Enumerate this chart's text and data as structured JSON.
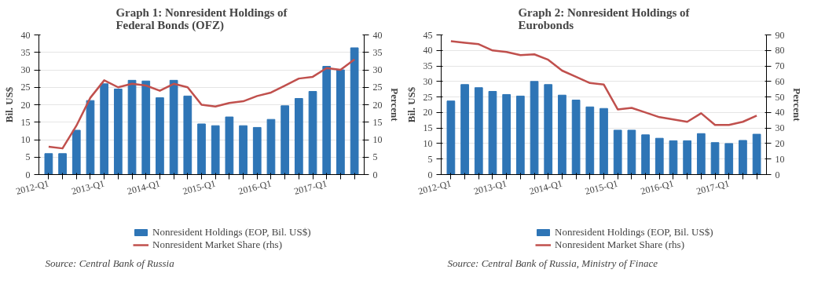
{
  "chart_data": [
    {
      "type": "bar",
      "title": "Graph 1: Nonresident Holdings of Federal Bonds (OFZ)",
      "ylabel": "Bil. US$",
      "y2label": "Percent",
      "categories": [
        "2012-Q1",
        null,
        null,
        null,
        "2013-Q1",
        null,
        null,
        null,
        "2014-Q1",
        null,
        null,
        null,
        "2015-Q1",
        null,
        null,
        null,
        "2016-Q1",
        null,
        null,
        null,
        "2017-Q1",
        null,
        null
      ],
      "series": [
        {
          "name": "Nonresident Holdings (EOP, Bil. US$)",
          "color": "#2e75b6",
          "values": [
            6,
            6,
            12.7,
            21.2,
            26,
            24.5,
            27,
            26.8,
            22,
            27,
            22.5,
            14.5,
            14,
            16.5,
            14,
            13.5,
            15.8,
            19.7,
            21.8,
            23.8,
            31,
            30,
            36.3
          ]
        },
        {
          "name": "Nonresident Market Share (rhs)",
          "type": "line",
          "axis": "y2",
          "color": "#c0504d",
          "values": [
            8,
            7.5,
            14,
            22,
            27,
            25,
            26,
            25.5,
            24,
            26,
            25,
            20,
            19.5,
            20.5,
            21,
            22.5,
            23.5,
            25.5,
            27.5,
            28,
            30.5,
            30,
            33
          ]
        }
      ],
      "ylim": [
        0,
        40
      ],
      "yticks": [
        0,
        5,
        10,
        15,
        20,
        25,
        30,
        35,
        40
      ],
      "y2lim": [
        0,
        40
      ],
      "y2ticks": [
        0,
        5,
        10,
        15,
        20,
        25,
        30,
        35,
        40
      ],
      "grid": "y",
      "legend": "bottom",
      "annotations": [
        "Source: Central Bank of Russia"
      ]
    },
    {
      "type": "bar",
      "title": "Graph 2: Nonresident Holdings of Eurobonds",
      "ylabel": "Bil. US$",
      "y2label": "Percent",
      "categories": [
        "2012-Q1",
        null,
        null,
        null,
        "2013-Q1",
        null,
        null,
        null,
        "2014-Q1",
        null,
        null,
        null,
        "2015-Q1",
        null,
        null,
        null,
        "2016-Q1",
        null,
        null,
        null,
        "2017-Q1",
        null,
        null
      ],
      "series": [
        {
          "name": "Nonresident Holdings (EOP, Bil. US$)",
          "color": "#2e75b6",
          "values": [
            23.7,
            29,
            28,
            26.8,
            25.8,
            25.3,
            30,
            29,
            25.6,
            24,
            21.8,
            21.3,
            14.3,
            14.3,
            12.8,
            11.7,
            10.9,
            10.9,
            13.2,
            10.3,
            10,
            11,
            13
          ]
        },
        {
          "name": "Nonresident Market Share (rhs)",
          "type": "line",
          "axis": "y2",
          "color": "#c0504d",
          "values": [
            86,
            85,
            84,
            80,
            79,
            77,
            77.5,
            74,
            67,
            63,
            59,
            58,
            42,
            43,
            40,
            37,
            35.5,
            34,
            39.5,
            32,
            32,
            34,
            38
          ]
        }
      ],
      "ylim": [
        0,
        45
      ],
      "yticks": [
        0,
        5,
        10,
        15,
        20,
        25,
        30,
        35,
        40,
        45
      ],
      "y2lim": [
        0,
        90
      ],
      "y2ticks": [
        0,
        10,
        20,
        30,
        40,
        50,
        60,
        70,
        80,
        90
      ],
      "grid": "y",
      "legend": "bottom",
      "annotations": [
        "Source: Central Bank of Russia, Ministry of Finace"
      ]
    }
  ]
}
